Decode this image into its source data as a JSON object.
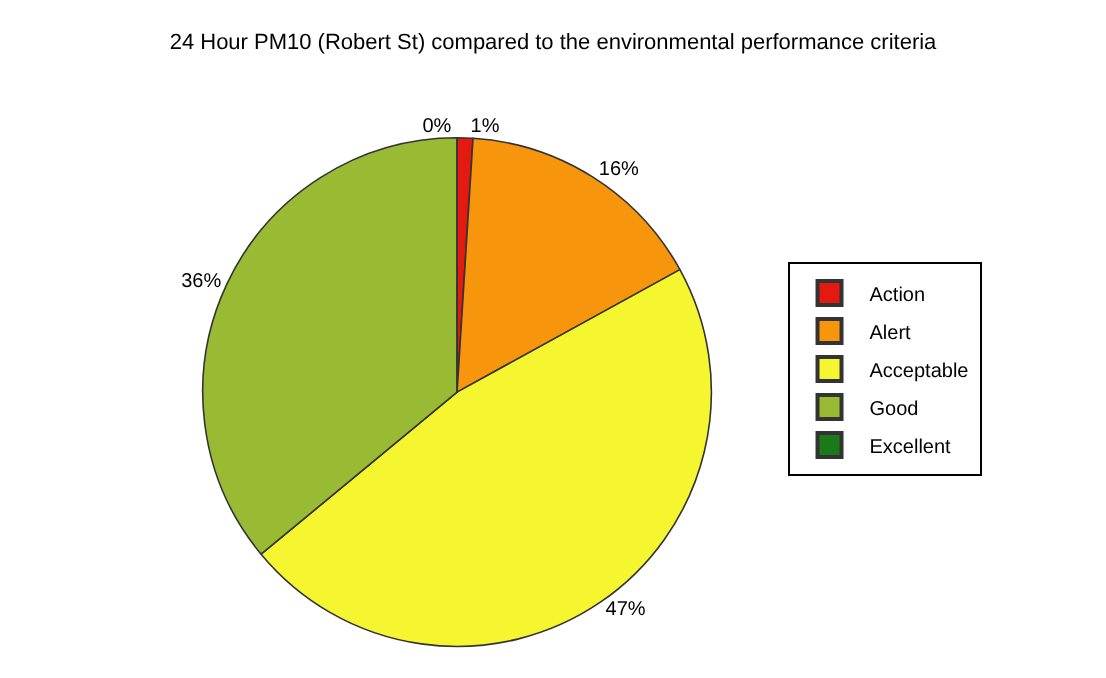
{
  "chart_data": {
    "type": "pie",
    "title": "24 Hour PM10 (Robert St) compared to the environmental performance criteria",
    "categories": [
      "Action",
      "Alert",
      "Acceptable",
      "Good",
      "Excellent"
    ],
    "values": [
      1,
      16,
      47,
      36,
      0
    ],
    "value_labels": [
      "1%",
      "16%",
      "47%",
      "36%",
      "0%"
    ],
    "colors": [
      "#e41a12",
      "#f7960c",
      "#f5f530",
      "#99bb33",
      "#1a7a1a"
    ],
    "legend": "right"
  }
}
